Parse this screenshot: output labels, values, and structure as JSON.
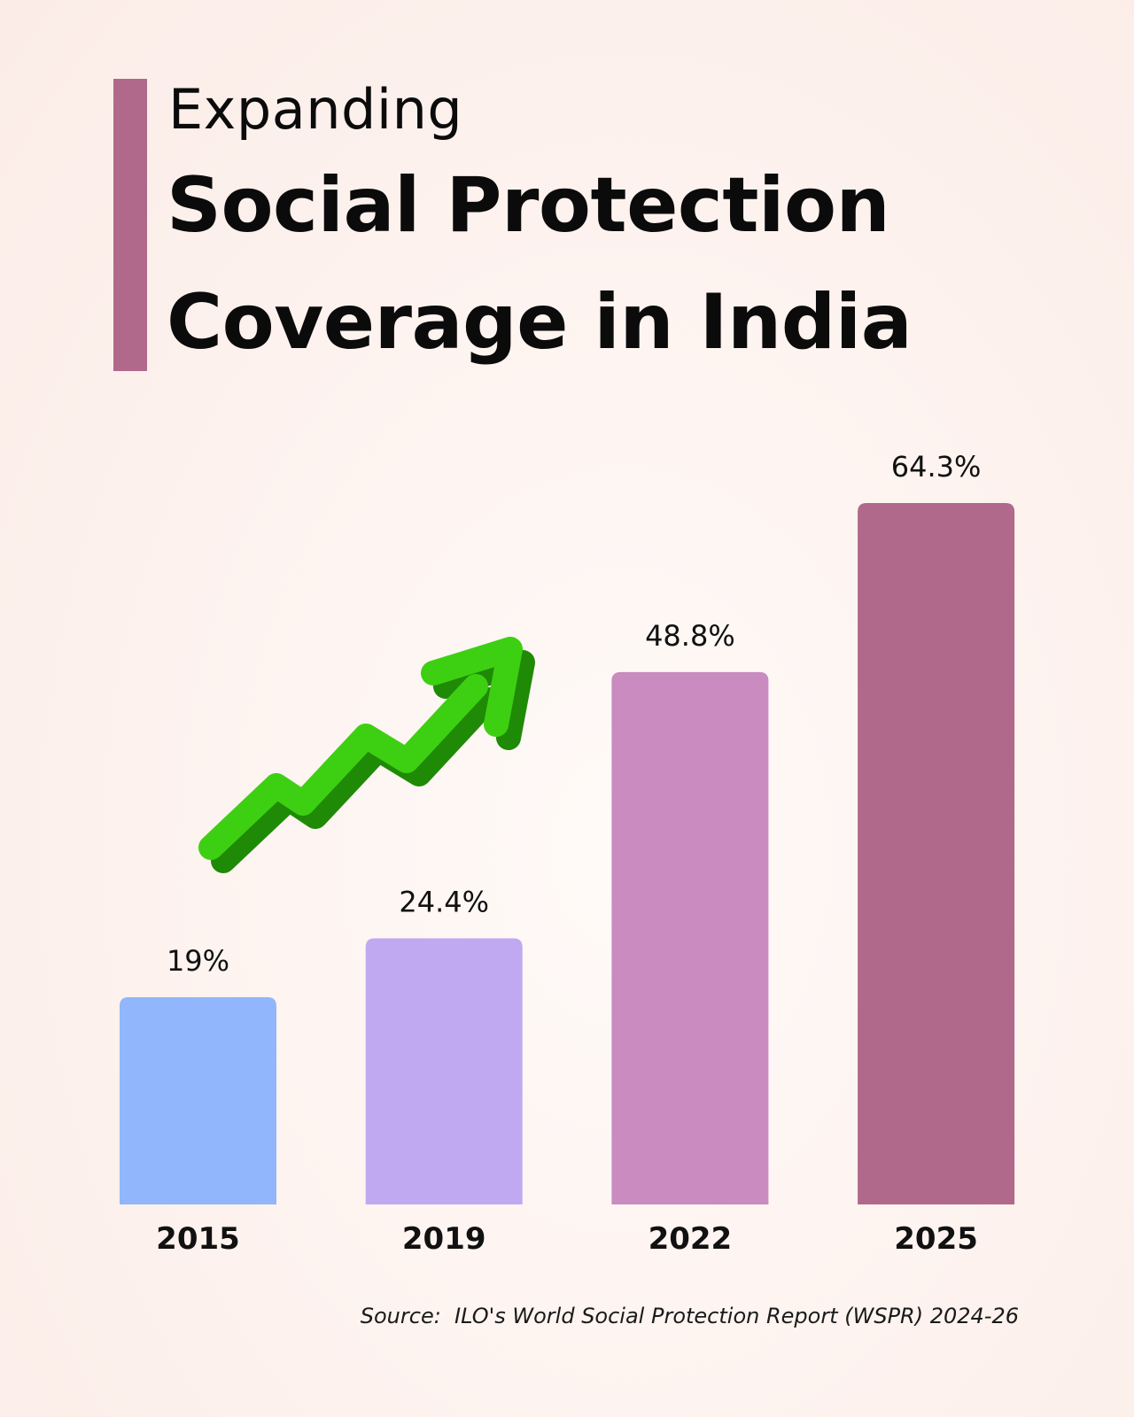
{
  "header": {
    "title_small": "Expanding",
    "title_line1": "Social Protection",
    "title_line2": "Coverage in India"
  },
  "source": "Source:  ILO's World Social Protection Report (WSPR) 2024-26",
  "colors": {
    "accent_bar": "#b0698b",
    "arrow_light": "#3dd012",
    "arrow_dark": "#1f8a06"
  },
  "icons": {
    "trend": "trend-up-arrow-icon"
  },
  "chart_data": {
    "type": "bar",
    "categories": [
      "2015",
      "2019",
      "2022",
      "2025"
    ],
    "values": [
      19,
      24.4,
      48.8,
      64.3
    ],
    "value_labels": [
      "19%",
      "24.4%",
      "48.8%",
      "64.3%"
    ],
    "bar_colors": [
      "#91b6fb",
      "#c1a9f2",
      "#c98bc0",
      "#b0698b"
    ],
    "grid": false,
    "ylim": [
      0,
      64.3
    ]
  }
}
